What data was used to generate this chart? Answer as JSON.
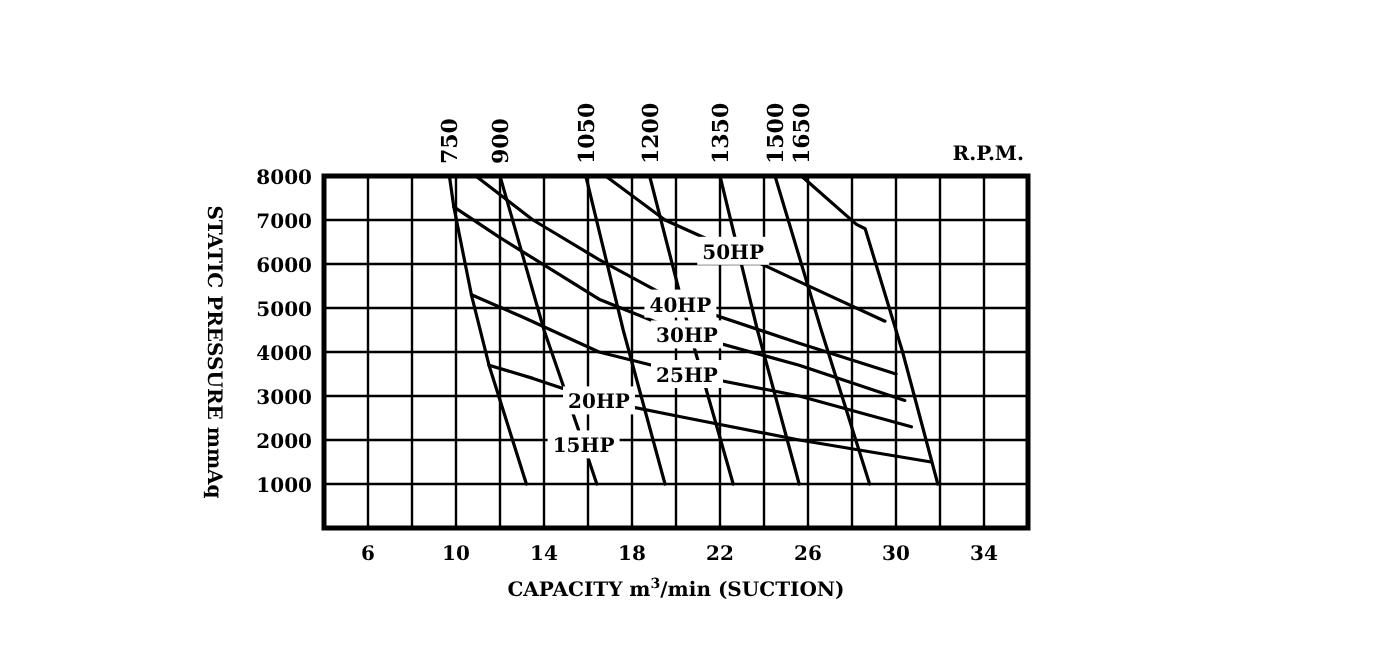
{
  "chart_data": {
    "type": "line",
    "xlabel": "CAPACITY m$^{3}$/min (SUCTION)",
    "ylabel": "STATIC PRESSURE mmAq",
    "xlim": [
      4,
      36
    ],
    "ylim": [
      0,
      8000
    ],
    "xticks": [
      6,
      {
        "value": 8,
        "label": null
      },
      10,
      {
        "value": 12,
        "label": null
      },
      14,
      {
        "value": 16,
        "label": null
      },
      18,
      {
        "value": 20,
        "label": null
      },
      22,
      {
        "value": 24,
        "label": null
      },
      26,
      {
        "value": 28,
        "label": null
      },
      30,
      {
        "value": 32,
        "label": null
      },
      34
    ],
    "yticks": [
      1000,
      2000,
      3000,
      4000,
      5000,
      6000,
      7000,
      8000
    ],
    "grid": true,
    "marker": "none",
    "line_style": "solid",
    "annotations": [
      {
        "text": "50HP",
        "x": 22.6,
        "y": 6300
      },
      {
        "text": "40HP",
        "x": 20.2,
        "y": 5100
      },
      {
        "text": "30HP",
        "x": 20.5,
        "y": 4400
      },
      {
        "text": "25HP",
        "x": 20.5,
        "y": 3500
      },
      {
        "text": "20HP",
        "x": 16.5,
        "y": 2900
      },
      {
        "text": "15HP",
        "x": 15.8,
        "y": 1900
      },
      "R.P.M."
    ],
    "series": [
      {
        "color": "#000000",
        "x": [
          16.8,
          19.5,
          22.6,
          25.6,
          29.5
        ],
        "values": [
          8000,
          7000,
          6300,
          5600,
          4700
        ]
      },
      {
        "color": "#000000",
        "x": [
          10.9,
          13.5,
          16.5,
          20.2,
          25.6,
          30.0
        ],
        "values": [
          8000,
          7000,
          6100,
          5100,
          4200,
          3500
        ]
      },
      {
        "color": "#000000",
        "x": [
          9.9,
          12,
          16.5,
          20.5,
          25.6,
          30.4
        ],
        "values": [
          7300,
          6600,
          5200,
          4400,
          3700,
          2900
        ]
      },
      {
        "color": "#000000",
        "x": [
          10.7,
          13,
          16.5,
          20.5,
          25.6,
          30.7
        ],
        "values": [
          5300,
          4800,
          4000,
          3500,
          3000,
          2300
        ]
      },
      {
        "color": "#000000",
        "x": [
          11.5,
          13.5,
          16.5,
          20.5,
          25.6,
          31.6
        ],
        "values": [
          3700,
          3400,
          2900,
          2500,
          2000,
          1500
        ]
      },
      {
        "name": "750",
        "color": "#000000",
        "x": [
          9.7,
          9.9,
          10.7,
          11.5,
          13.2
        ],
        "values": [
          8000,
          7300,
          5300,
          3700,
          1000
        ]
      },
      {
        "name": "900",
        "color": "#000000",
        "x": [
          12.0,
          14.0,
          15.8,
          16.4
        ],
        "values": [
          8000,
          4500,
          1900,
          1000
        ]
      },
      {
        "name": "1050",
        "color": "#000000",
        "x": [
          15.9,
          17.6,
          19.5
        ],
        "values": [
          8000,
          4500,
          1000
        ]
      },
      {
        "name": "1200",
        "color": "#000000",
        "x": [
          18.8,
          20.6,
          22.6
        ],
        "values": [
          8000,
          4500,
          1000
        ]
      },
      {
        "name": "1350",
        "color": "#000000",
        "x": [
          22.0,
          23.7,
          25.6
        ],
        "values": [
          8000,
          4500,
          1000
        ]
      },
      {
        "name": "1500",
        "color": "#000000",
        "x": [
          24.5,
          26.6,
          28.8
        ],
        "values": [
          8000,
          4500,
          1000
        ]
      },
      {
        "name": "1650",
        "color": "#000000",
        "x": [
          25.7,
          28.2,
          28.6,
          30.3,
          31.9
        ],
        "values": [
          8000,
          6900,
          6800,
          4000,
          1000
        ]
      }
    ]
  }
}
